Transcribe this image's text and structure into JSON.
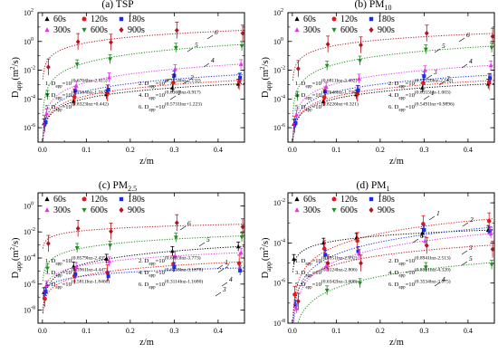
{
  "figure": {
    "panels": [
      {
        "key": "tsp",
        "title": "(a) TSP",
        "title_main": "(a) TSP",
        "title_sub": "",
        "ylim_exp": [
          -7,
          2
        ],
        "ytick_exps": [
          -6,
          -4,
          -2,
          0,
          2
        ],
        "legend_pos": "top-left",
        "equations": [
          [
            "1. D",
            "app",
            "=10",
            "(0.6704lnz-2.415)"
          ],
          [
            "2. D",
            "app",
            "=10",
            "(0.7154lnz-2.132)"
          ],
          [
            "3. D",
            "app",
            "=10",
            "(0.7564lnz-1.713)"
          ],
          [
            "4. D",
            "app",
            "=10",
            "(0.8368lnz-0.917)"
          ],
          [
            "5. D",
            "app",
            "=10",
            "(0.8323lnz+0.442)"
          ],
          [
            "6. D",
            "app",
            "=10",
            "(0.5731lnz+1.223)"
          ]
        ]
      },
      {
        "key": "pm10",
        "title": "(b) PM10",
        "title_main": "(b) PM",
        "title_sub": "10",
        "ylim_exp": [
          -7,
          2
        ],
        "ytick_exps": [
          -6,
          -4,
          -2,
          0,
          2
        ],
        "legend_pos": "top-left",
        "equations": [
          [
            "1. D",
            "app",
            "=10",
            "(0.6811lnz-2.402)"
          ],
          [
            "2. D",
            "app",
            "=10",
            "(0.72520lnz-2.142)"
          ],
          [
            "3. D",
            "app",
            "=10",
            "(0.7640lnz-1.736)"
          ],
          [
            "4. D",
            "app",
            "=10",
            "(0.8355lnz-1.003)"
          ],
          [
            "5. D",
            "app",
            "=10",
            "(0.8226lnz+0.321)"
          ],
          [
            "6. D",
            "app",
            "=10",
            "(0.5491lnz+0.9896)"
          ]
        ]
      },
      {
        "key": "pm25",
        "title": "(c) PM2.5",
        "title_main": "(c) PM",
        "title_sub": "2.5",
        "ylim_exp": [
          -9,
          1
        ],
        "ytick_exps": [
          -8,
          -6,
          -4,
          -2,
          0
        ],
        "legend_pos": "top-left",
        "equations": [
          [
            "1. D",
            "app",
            "=10",
            "(0.8579lnz-2.435)"
          ],
          [
            "2. D",
            "app",
            "=10",
            "(0.6663lnz-3.773)"
          ],
          [
            "3. D",
            "app",
            "=10",
            "(0.3961lnz-4.447)"
          ],
          [
            "4. D",
            "app",
            "=10",
            "(0.6118lnz-3.1070)"
          ],
          [
            "5. D",
            "app",
            "=10",
            "(0.5811lnz-1.8460)"
          ],
          [
            "6. D",
            "app",
            "=10",
            "(0.3114lnz-1.1680)"
          ]
        ]
      },
      {
        "key": "pm1",
        "title": "(d) PM1",
        "title_main": "(d) PM",
        "title_sub": "1",
        "ylim_exp": [
          -8,
          -1.5
        ],
        "ytick_exps": [
          -8,
          -6,
          -4,
          -2
        ],
        "legend_pos": "top-left",
        "equations": [
          [
            "1. D",
            "app",
            "=10",
            "(0.8951lnz-2.092)"
          ],
          [
            "2. D",
            "app",
            "=10",
            "(0.8941lnz-2.513)"
          ],
          [
            "3. D",
            "app",
            "=10",
            "(0.9124lnz-2.806)"
          ],
          [
            "4. D",
            "app",
            "=10",
            "(0.8361lnz-4.320)"
          ],
          [
            "5. D",
            "app",
            "=10",
            "(0.6342lnz-3.608)"
          ],
          [
            "6. D",
            "app",
            "=10",
            "(0.3534lnz-3.075)"
          ]
        ]
      }
    ],
    "xlabel": "z/m",
    "ylabel_main": "D",
    "ylabel_sub": "app",
    "ylabel_unit": "(m",
    "ylabel_sup": "2",
    "ylabel_tail": "/s)",
    "xticks": [
      "0.0",
      "0.1",
      "0.2",
      "0.3",
      "0.4"
    ],
    "xtick_values": [
      0,
      0.1,
      0.2,
      0.3,
      0.4
    ],
    "xlim": [
      -0.01,
      0.46
    ],
    "tick_base": "10"
  },
  "chart_data": {
    "type": "scatter",
    "x": [
      0.0075,
      0.075,
      0.15,
      0.3,
      0.45
    ],
    "x_unit": "z/m",
    "series": [
      {
        "name": "60s",
        "color": "#000000",
        "marker": "triangle-up"
      },
      {
        "name": "120s",
        "color": "#e8151b",
        "marker": "circle"
      },
      {
        "name": "180s",
        "color": "#1a2ee8",
        "marker": "square"
      },
      {
        "name": "300s",
        "color": "#e535e5",
        "marker": "triangle-up"
      },
      {
        "name": "600s",
        "color": "#1b8f1b",
        "marker": "triangle-down"
      },
      {
        "name": "900s",
        "color": "#b3141e",
        "marker": "diamond"
      }
    ],
    "panels": [
      {
        "title": "(a) TSP",
        "fits": [
          [
            0.6704,
            -2.415
          ],
          [
            0.7154,
            -2.132
          ],
          [
            0.7564,
            -1.713
          ],
          [
            0.8368,
            -0.917
          ],
          [
            0.8323,
            0.442
          ],
          [
            0.5731,
            1.223
          ]
        ],
        "series_to_curve": [
          0,
          1,
          2,
          3,
          4,
          5
        ]
      },
      {
        "title": "(b) PM10",
        "fits": [
          [
            0.6811,
            -2.402
          ],
          [
            0.7252,
            -2.142
          ],
          [
            0.764,
            -1.736
          ],
          [
            0.8355,
            -1.003
          ],
          [
            0.8226,
            0.321
          ],
          [
            0.5491,
            0.9896
          ]
        ],
        "series_to_curve": [
          0,
          1,
          2,
          3,
          4,
          5
        ]
      },
      {
        "title": "(c) PM2.5",
        "fits": [
          [
            0.8579,
            -2.435
          ],
          [
            0.6663,
            -3.773
          ],
          [
            0.3961,
            -4.447
          ],
          [
            0.6118,
            -3.107
          ],
          [
            0.5811,
            -1.846
          ],
          [
            0.3114,
            -1.168
          ]
        ],
        "series_to_curve": [
          0,
          1,
          2,
          3,
          4,
          5
        ]
      },
      {
        "title": "(d) PM1",
        "fits": [
          [
            0.8951,
            -2.092
          ],
          [
            0.8941,
            -2.513
          ],
          [
            0.9124,
            -2.806
          ],
          [
            0.8361,
            -4.32
          ],
          [
            0.6342,
            -3.608
          ],
          [
            0.3534,
            -3.075
          ]
        ],
        "series_to_curve": [
          5,
          0,
          1,
          2,
          3,
          4
        ]
      }
    ],
    "yscale": "log",
    "grid": false,
    "legend_placement": "top-left"
  }
}
